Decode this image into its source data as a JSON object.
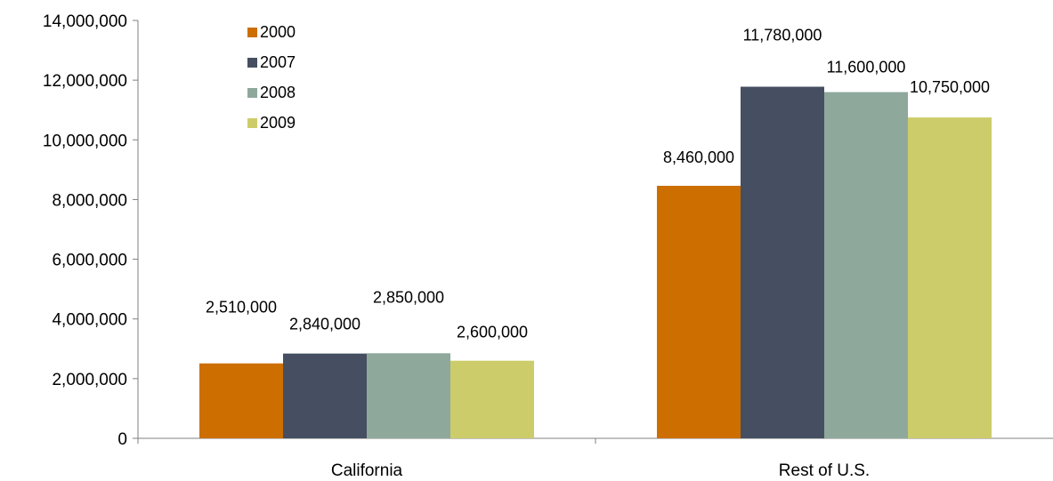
{
  "chart_data": {
    "type": "bar",
    "title": "",
    "xlabel": "",
    "ylabel": "",
    "categories": [
      "California",
      "Rest of U.S."
    ],
    "series": [
      {
        "name": "2000",
        "values": [
          2510000,
          8460000
        ],
        "labels": [
          "2,510,000",
          "8,460,000"
        ],
        "color": "#cc6e00"
      },
      {
        "name": "2007",
        "values": [
          2840000,
          11780000
        ],
        "labels": [
          "2,840,000",
          "11,780,000"
        ],
        "color": "#454f61"
      },
      {
        "name": "2008",
        "values": [
          2850000,
          11600000
        ],
        "labels": [
          "2,850,000",
          "11,600,000"
        ],
        "color": "#8ea99c"
      },
      {
        "name": "2009",
        "values": [
          2600000,
          10750000
        ],
        "labels": [
          "2,600,000",
          "10,750,000"
        ],
        "color": "#cdcc6a"
      }
    ],
    "ylim": [
      0,
      14000000
    ],
    "yticks": [
      0,
      2000000,
      4000000,
      6000000,
      8000000,
      10000000,
      12000000,
      14000000
    ],
    "ytick_labels": [
      "0",
      "2,000,000",
      "4,000,000",
      "6,000,000",
      "8,000,000",
      "10,000,000",
      "12,000,000",
      "14,000,000"
    ],
    "grid": false,
    "legend": "top-left"
  }
}
